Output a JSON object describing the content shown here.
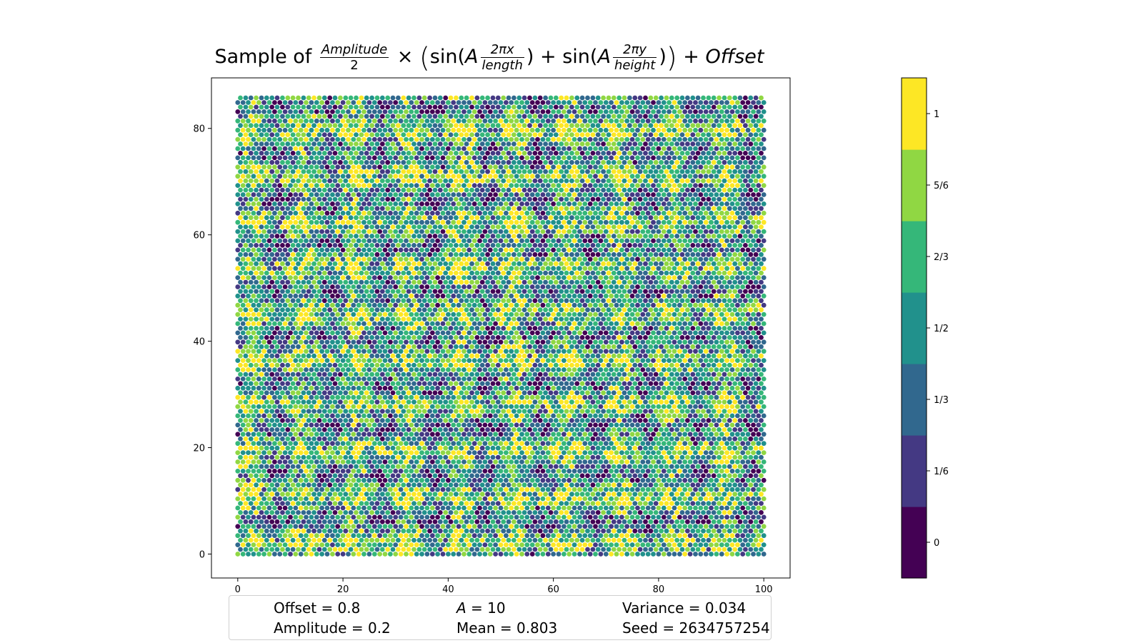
{
  "title": {
    "prefix": "Sample of",
    "amp_num": "Amplitude",
    "amp_den": "2",
    "times": "×",
    "sin1": "sin(",
    "a1": "A",
    "x_num": "2πx",
    "x_den": "length",
    "plus": "+",
    "sin2": "sin(",
    "a2": "A",
    "y_num": "2πy",
    "y_den": "height",
    "offset": "Offset"
  },
  "chart_data": {
    "type": "scatter",
    "marker": "hexagonal grid of dots",
    "grid": false,
    "xlim": [
      -5,
      105
    ],
    "ylim": [
      -4.5,
      89.5
    ],
    "x_ticks": [
      0,
      20,
      40,
      60,
      80,
      100
    ],
    "y_ticks": [
      0,
      20,
      40,
      60,
      80
    ],
    "x_range": [
      0,
      100
    ],
    "y_range": [
      0,
      86
    ],
    "colormap": "viridis (7 discrete levels)",
    "colorbar": {
      "levels": 7,
      "tick_labels": [
        "0",
        "1/6",
        "1/3",
        "1/2",
        "2/3",
        "5/6",
        "1"
      ],
      "colors": [
        "#440154",
        "#443983",
        "#31688e",
        "#21918c",
        "#35b779",
        "#90d743",
        "#fde725"
      ]
    }
  },
  "stats": {
    "offset": "Offset = 0.8",
    "a_symbol": "A",
    "a_value": " = 10",
    "variance": "Variance = 0.034",
    "amplitude": "Amplitude = 0.2",
    "mean": "Mean = 0.803",
    "seed": "Seed = 2634757254"
  }
}
